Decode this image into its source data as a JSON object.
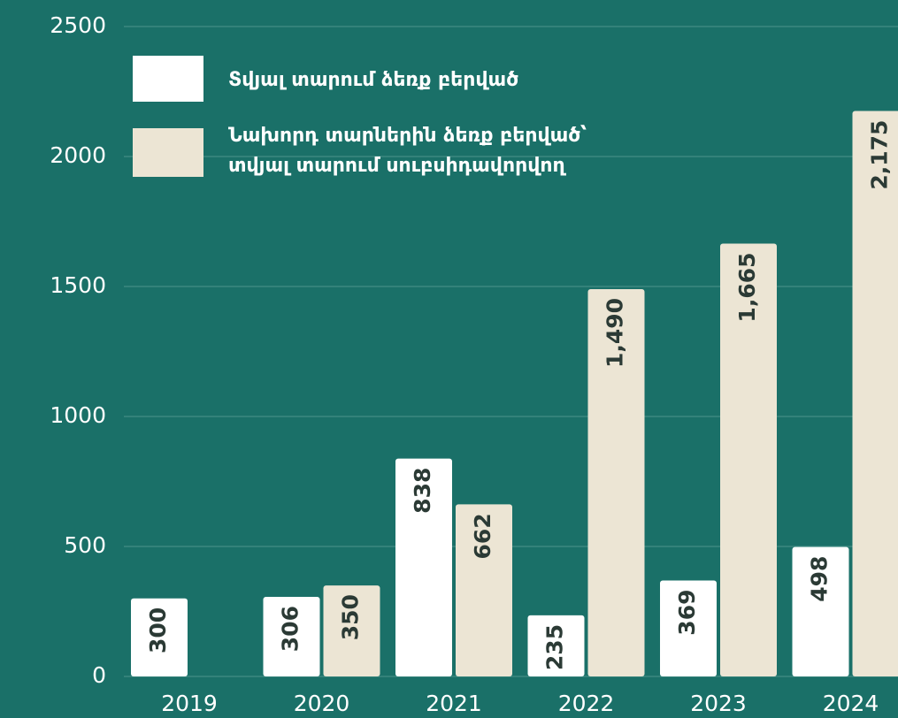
{
  "chart_data": {
    "type": "bar",
    "categories": [
      "2019",
      "2020",
      "2021",
      "2022",
      "2023",
      "2024"
    ],
    "series": [
      {
        "name": "Տվյալ տարում ձեռք բերված",
        "color": "#ffffff",
        "values": [
          300,
          306,
          838,
          235,
          369,
          498
        ]
      },
      {
        "name": "Նախորդ տարներին ձեռք բերված՝\nտվյալ տարում սուբսիդավորվող",
        "color": "#ece5d4",
        "values": [
          null,
          350,
          662,
          1490,
          1665,
          2175
        ],
        "value_labels": [
          null,
          "350",
          "662",
          "1,490",
          "1,665",
          "2,175"
        ]
      }
    ],
    "ylim": [
      0,
      2500
    ],
    "yticks": [
      0,
      500,
      1000,
      1500,
      2000,
      2500
    ],
    "grid": true,
    "legend": "upper left"
  }
}
